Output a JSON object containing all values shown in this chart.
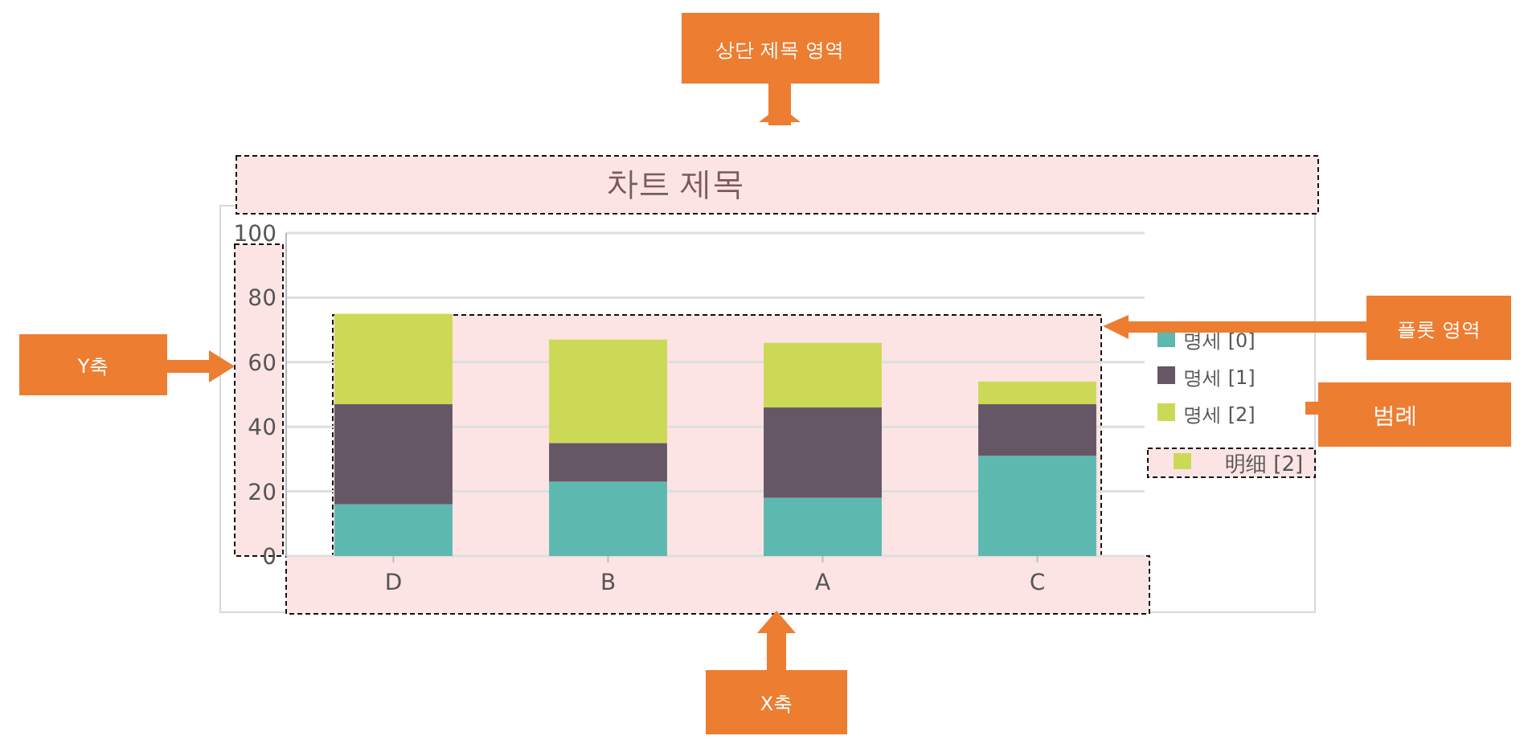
{
  "chart_data": {
    "type": "bar",
    "title": "차트 제목",
    "stacked": true,
    "categories": [
      "D",
      "B",
      "A",
      "C"
    ],
    "series": [
      {
        "name": "명세 [0]",
        "color": "#5db8b0",
        "values": [
          16,
          23,
          18,
          31
        ]
      },
      {
        "name": "명세 [1]",
        "color": "#655766",
        "values": [
          31,
          12,
          28,
          16
        ]
      },
      {
        "name": "명세 [2]",
        "color": "#ccd957",
        "values": [
          28,
          32,
          20,
          7
        ]
      }
    ],
    "ylim": [
      0,
      100
    ],
    "yticks": [
      0,
      20,
      40,
      60,
      80,
      100
    ],
    "grid": "y",
    "legend": "right",
    "annotations": [
      "상단 제목 영역",
      "Y축",
      "X축",
      "플롯 영역",
      "범례",
      "明细 [2]"
    ]
  }
}
